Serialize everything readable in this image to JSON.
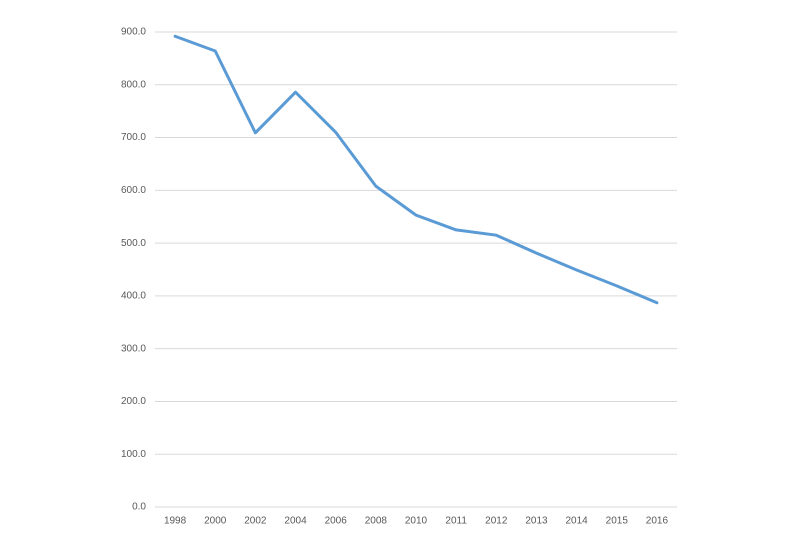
{
  "chart_data": {
    "type": "line",
    "categories": [
      "1998",
      "2000",
      "2002",
      "2004",
      "2006",
      "2008",
      "2010",
      "2011",
      "2012",
      "2013",
      "2014",
      "2015",
      "2016"
    ],
    "values": [
      892,
      864,
      709,
      786,
      710,
      608,
      553,
      525,
      515,
      481,
      449,
      419,
      387
    ],
    "color": "#5b9bd5",
    "ylim": [
      0,
      900
    ],
    "yticks": [
      {
        "value": 0,
        "label": "0.0"
      },
      {
        "value": 100,
        "label": "100.0"
      },
      {
        "value": 200,
        "label": "200.0"
      },
      {
        "value": 300,
        "label": "300.0"
      },
      {
        "value": 400,
        "label": "400.0"
      },
      {
        "value": 500,
        "label": "500.0"
      },
      {
        "value": 600,
        "label": "600.0"
      },
      {
        "value": 700,
        "label": "700.0"
      },
      {
        "value": 800,
        "label": "800.0"
      },
      {
        "value": 900,
        "label": "900.0"
      }
    ],
    "grid": true
  }
}
